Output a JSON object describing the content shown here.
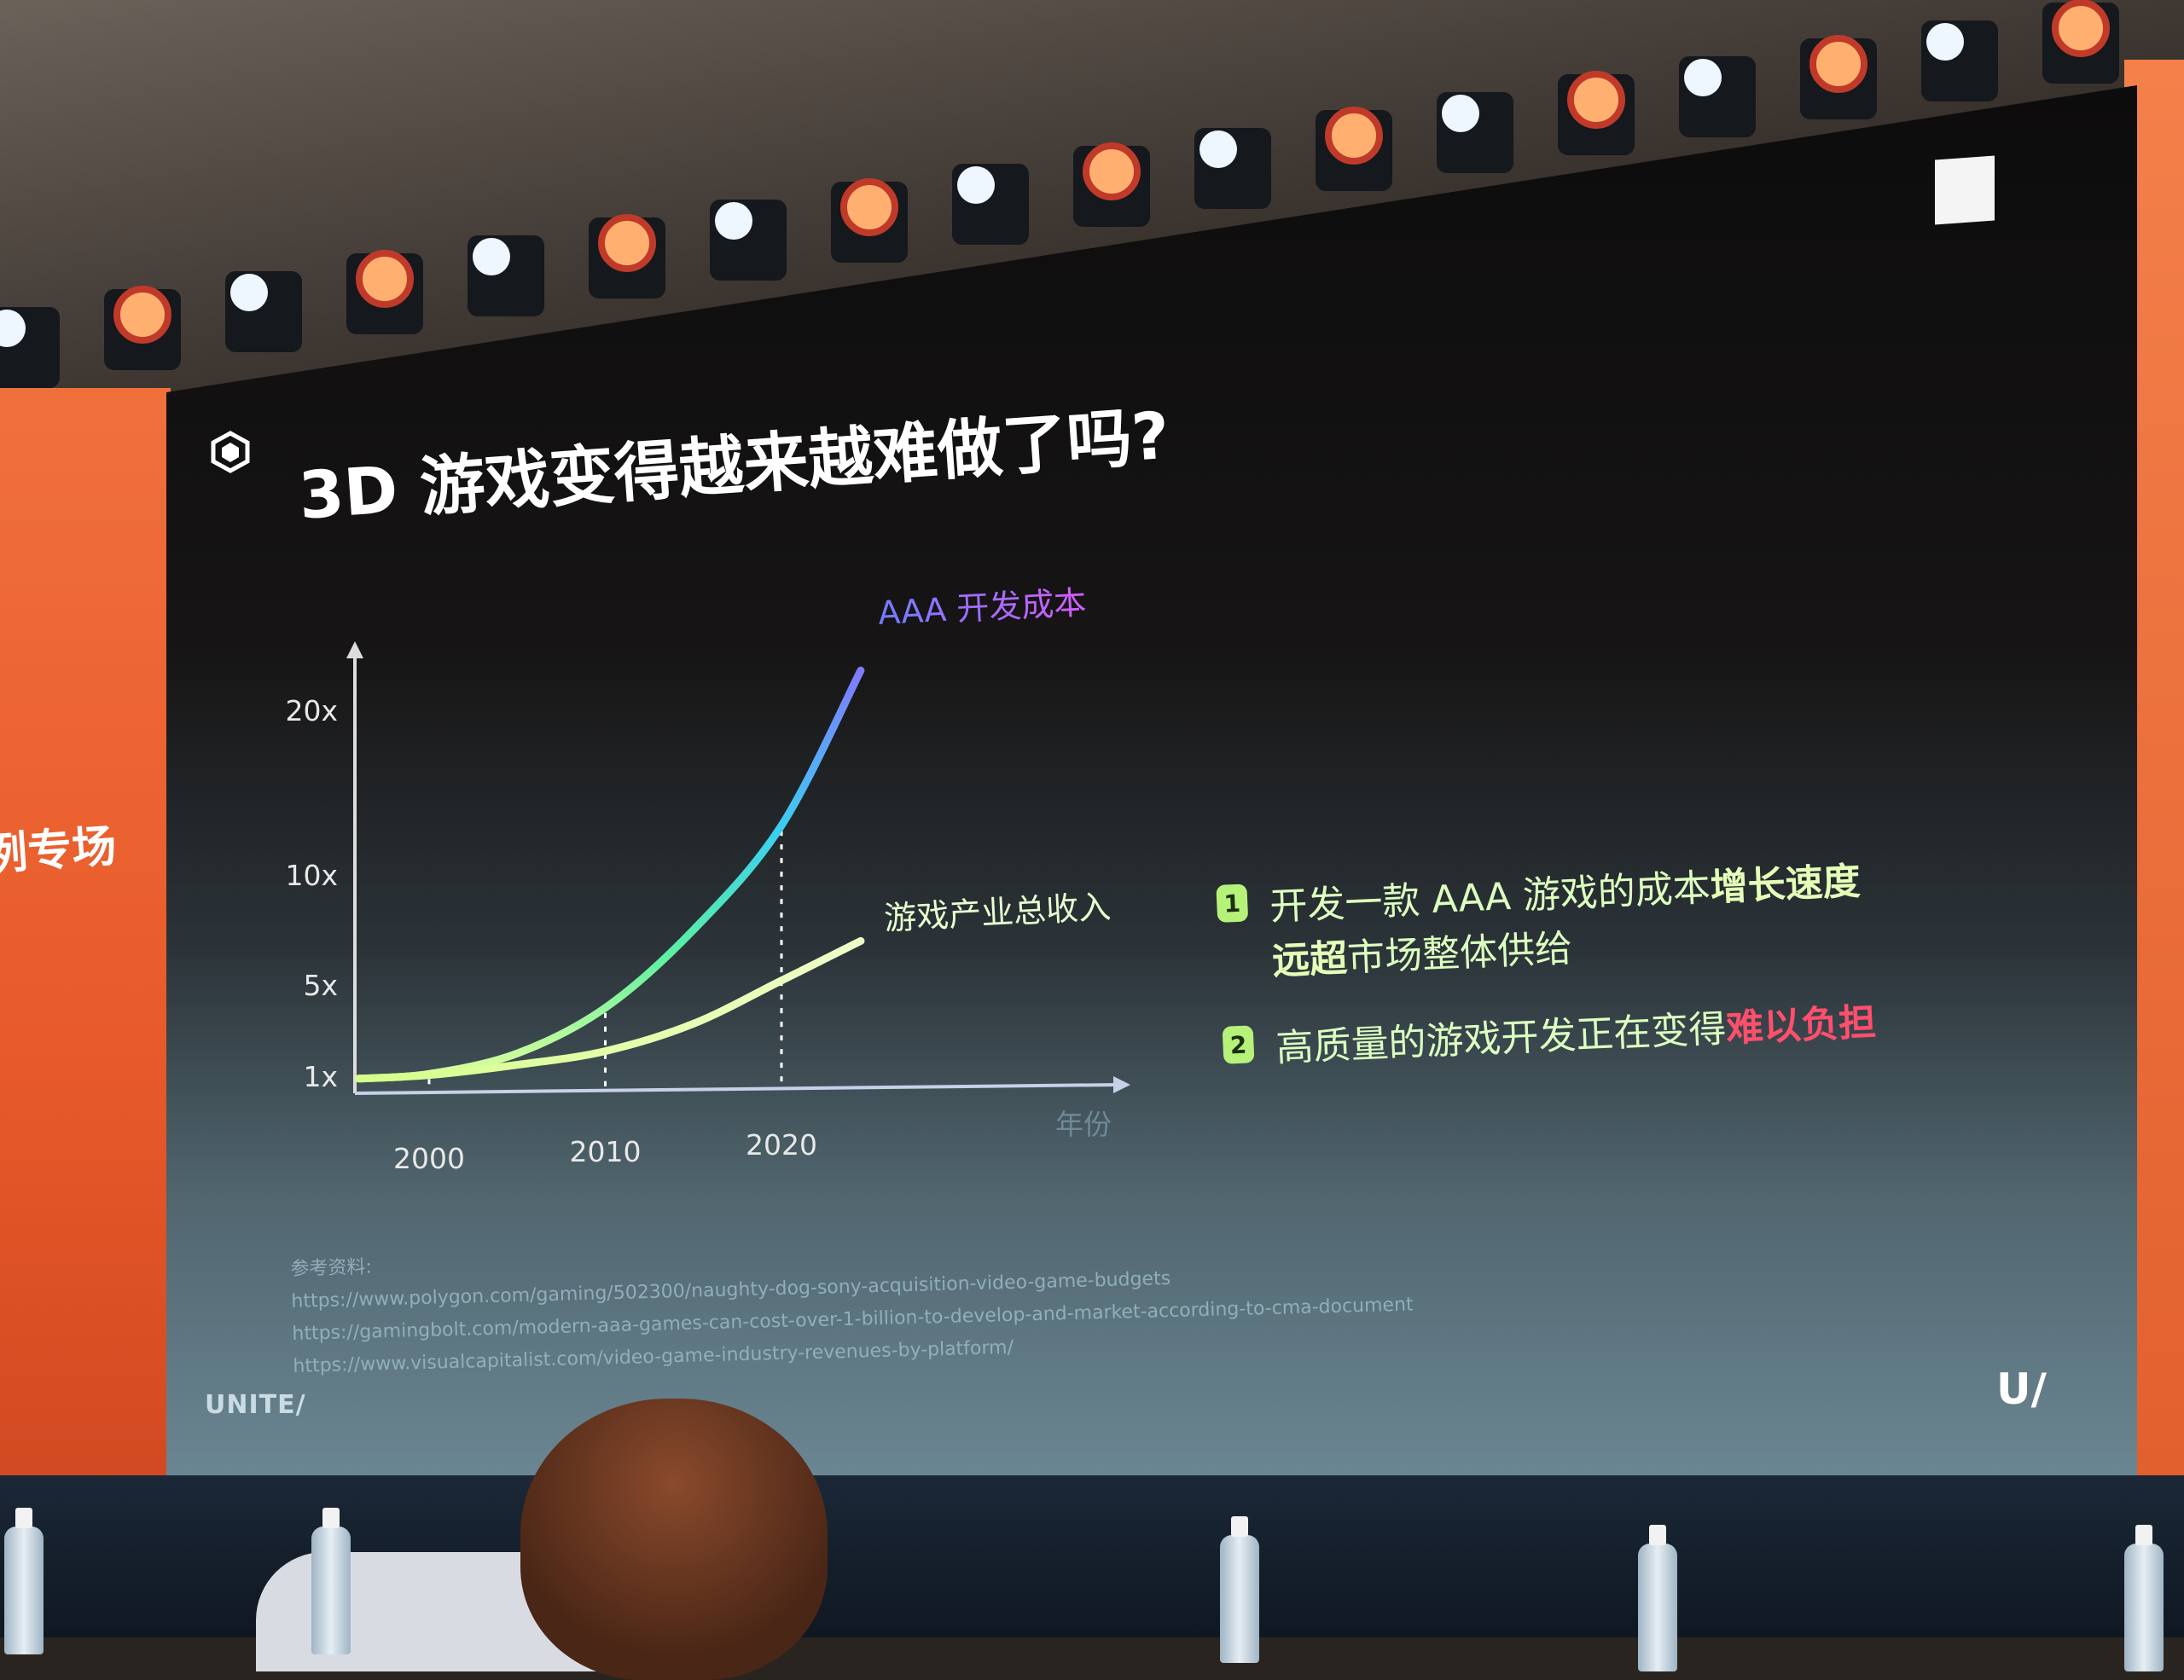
{
  "slide": {
    "title": "3D 游戏变得越来越难做了吗?",
    "side_banner_text": "例专场",
    "footer_brand": "UNITE/",
    "corner_logo": "U/"
  },
  "chart_data": {
    "type": "line",
    "title": "",
    "xlabel": "年份",
    "ylabel": "",
    "x_ticks": [
      2000,
      2010,
      2020
    ],
    "x_tick_labels": [
      "2000",
      "2010",
      "2020"
    ],
    "y_ticks": [
      1,
      5,
      10,
      20
    ],
    "y_tick_labels": [
      "1x",
      "5x",
      "10x",
      "20x"
    ],
    "xlim": [
      1996,
      2028
    ],
    "ylim": [
      0,
      25
    ],
    "grid": false,
    "guides": "dotted vertical lines at 2000, 2010, 2020",
    "series": [
      {
        "name": "AAA 开发成本",
        "color": "#7b73ff",
        "x": [
          1996,
          2000,
          2005,
          2010,
          2015,
          2020,
          2024.5
        ],
        "values": [
          0.9,
          1.1,
          2.0,
          4.0,
          7.5,
          13.0,
          23.0
        ]
      },
      {
        "name": "游戏产业总收入",
        "color": "#e4ffb0",
        "x": [
          1996,
          2000,
          2005,
          2010,
          2015,
          2020,
          2024.5
        ],
        "values": [
          0.9,
          1.05,
          1.5,
          2.1,
          3.3,
          5.2,
          7.0
        ]
      }
    ]
  },
  "bullets": [
    {
      "num": "1",
      "line1_normal": "开发一款 AAA 游戏的成本",
      "line1_bold": "增长速度",
      "line2_bold": "远超",
      "line2_normal": "市场整体供给"
    },
    {
      "num": "2",
      "normal": "高质量的游戏开发正在变得",
      "highlight": "难以负担",
      "highlight_color": "#ff4f6c"
    }
  ],
  "references": {
    "label": "参考资料:",
    "links": [
      "https://www.polygon.com/gaming/502300/naughty-dog-sony-acquisition-video-game-budgets",
      "https://gamingbolt.com/modern-aaa-games-can-cost-over-1-billion-to-develop-and-market-according-to-cma-document",
      "https://www.visualcapitalist.com/video-game-industry-revenues-by-platform/"
    ]
  }
}
